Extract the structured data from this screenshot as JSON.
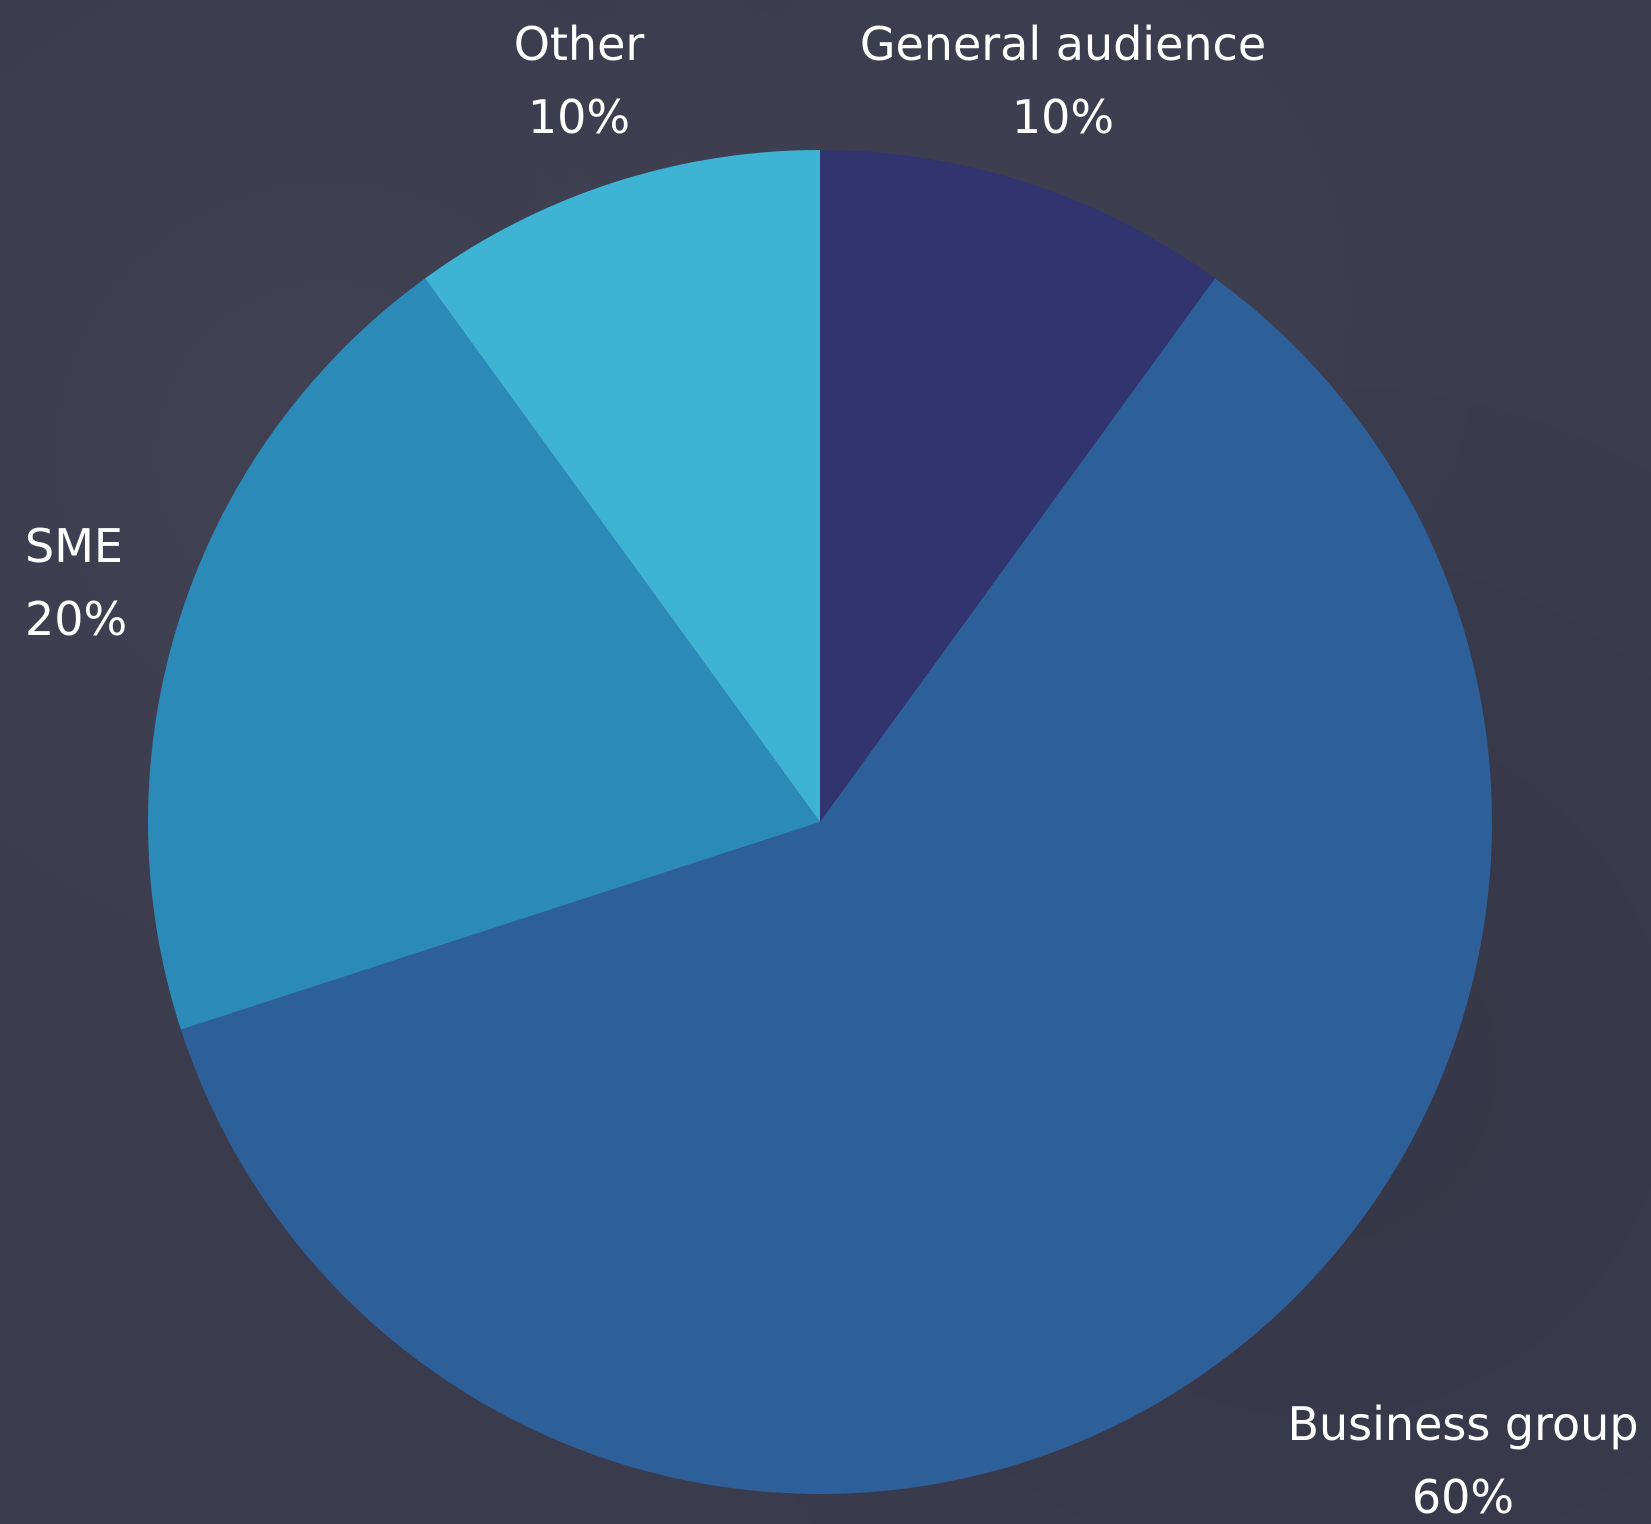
{
  "chart_data": {
    "type": "pie",
    "title": "",
    "slices": [
      {
        "label": "General audience",
        "value": 10,
        "value_label": "10%",
        "color": "#31346f"
      },
      {
        "label": "Business group",
        "value": 60,
        "value_label": "60%",
        "color": "#2d5f99"
      },
      {
        "label": "SME",
        "value": 20,
        "value_label": "20%",
        "color": "#2b8ab8"
      },
      {
        "label": "Other",
        "value": 10,
        "value_label": "10%",
        "color": "#3eb3d3"
      }
    ],
    "start_angle": "12 o'clock",
    "direction": "clockwise",
    "legend": "none",
    "data_labels": "outside, name above percentage"
  },
  "background_color": "#3a3b4d",
  "label_color": "#ffffff"
}
